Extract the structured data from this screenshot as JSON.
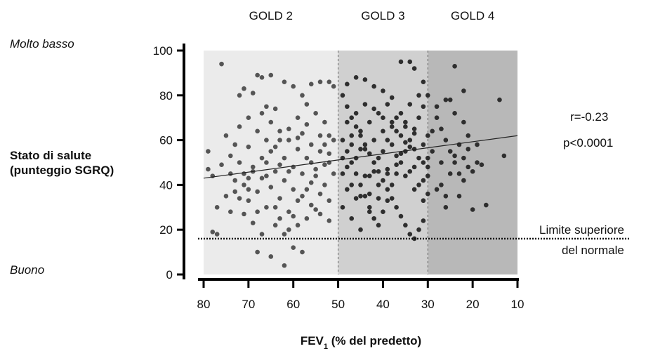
{
  "chart_data": {
    "type": "scatter",
    "title": "",
    "xlabel": "FEV",
    "xlabel_sub": "1",
    "xlabel_rest": " (% del predetto)",
    "ylabel_line1": "Stato di salute",
    "ylabel_line2": "(punteggio SGRQ)",
    "y_top_label": "Molto basso",
    "y_bottom_label": "Buono",
    "xlim": [
      80,
      10
    ],
    "ylim": [
      0,
      100
    ],
    "x_reversed": true,
    "x_ticks": [
      "80",
      "70",
      "60",
      "50",
      "40",
      "30",
      "20",
      "10"
    ],
    "y_ticks": [
      "0",
      "20",
      "40",
      "60",
      "80",
      "100"
    ],
    "grid": false,
    "regions": [
      {
        "name": "GOLD 2",
        "x_from": 80,
        "x_to": 50,
        "color": "#ebebeb"
      },
      {
        "name": "GOLD 3",
        "x_from": 50,
        "x_to": 30,
        "color": "#d0d0d0"
      },
      {
        "name": "GOLD 4",
        "x_from": 30,
        "x_to": 10,
        "color": "#b8b8b8"
      }
    ],
    "region_dividers": [
      50,
      30
    ],
    "regression_line": {
      "x": [
        80,
        10
      ],
      "y": [
        43,
        62
      ]
    },
    "reference_line": {
      "y": 16,
      "label_line1": "Limite superiore",
      "label_line2": "del normale"
    },
    "stats": {
      "r": "r=-0.23",
      "p": "p<0.0001"
    },
    "point_color": "#555555",
    "point_color_dark": "#2e2e2e",
    "series": [
      {
        "name": "",
        "points": [
          [
            79,
            55
          ],
          [
            78,
            19
          ],
          [
            77,
            18
          ],
          [
            79,
            47
          ],
          [
            76,
            94
          ],
          [
            75,
            62
          ],
          [
            73,
            58
          ],
          [
            74,
            45
          ],
          [
            72,
            80
          ],
          [
            71,
            83
          ],
          [
            69,
            81
          ],
          [
            70,
            57
          ],
          [
            68,
            89
          ],
          [
            67,
            88
          ],
          [
            65,
            89
          ],
          [
            66,
            75
          ],
          [
            64,
            74
          ],
          [
            62,
            86
          ],
          [
            60,
            84
          ],
          [
            58,
            80
          ],
          [
            56,
            85
          ],
          [
            54,
            86
          ],
          [
            52,
            86
          ],
          [
            51,
            84
          ],
          [
            72,
            50
          ],
          [
            70,
            43
          ],
          [
            68,
            37
          ],
          [
            66,
            30
          ],
          [
            64,
            22
          ],
          [
            62,
            18
          ],
          [
            60,
            12
          ],
          [
            58,
            10
          ],
          [
            62,
            4
          ],
          [
            65,
            8
          ],
          [
            68,
            10
          ],
          [
            73,
            42
          ],
          [
            75,
            35
          ],
          [
            77,
            30
          ],
          [
            71,
            27
          ],
          [
            69,
            23
          ],
          [
            67,
            18
          ],
          [
            63,
            25
          ],
          [
            61,
            28
          ],
          [
            59,
            33
          ],
          [
            57,
            38
          ],
          [
            55,
            44
          ],
          [
            53,
            49
          ],
          [
            52,
            54
          ],
          [
            51,
            60
          ],
          [
            54,
            62
          ],
          [
            57,
            67
          ],
          [
            59,
            70
          ],
          [
            61,
            65
          ],
          [
            63,
            60
          ],
          [
            65,
            55
          ],
          [
            67,
            52
          ],
          [
            69,
            48
          ],
          [
            71,
            45
          ],
          [
            73,
            37
          ],
          [
            74,
            28
          ],
          [
            72,
            66
          ],
          [
            70,
            70
          ],
          [
            68,
            64
          ],
          [
            66,
            60
          ],
          [
            64,
            57
          ],
          [
            62,
            52
          ],
          [
            60,
            48
          ],
          [
            58,
            45
          ],
          [
            56,
            41
          ],
          [
            54,
            36
          ],
          [
            52,
            33
          ],
          [
            55,
            29
          ],
          [
            57,
            25
          ],
          [
            59,
            22
          ],
          [
            61,
            20
          ],
          [
            63,
            34
          ],
          [
            65,
            39
          ],
          [
            67,
            43
          ],
          [
            69,
            46
          ],
          [
            71,
            40
          ],
          [
            70,
            33
          ],
          [
            68,
            28
          ],
          [
            66,
            50
          ],
          [
            64,
            46
          ],
          [
            62,
            42
          ],
          [
            60,
            38
          ],
          [
            58,
            35
          ],
          [
            56,
            31
          ],
          [
            54,
            27
          ],
          [
            52,
            24
          ],
          [
            53,
            40
          ],
          [
            55,
            47
          ],
          [
            57,
            52
          ],
          [
            59,
            56
          ],
          [
            61,
            60
          ],
          [
            63,
            64
          ],
          [
            65,
            68
          ],
          [
            67,
            72
          ],
          [
            56,
            58
          ],
          [
            54,
            55
          ],
          [
            52,
            50
          ],
          [
            51,
            45
          ],
          [
            53,
            68
          ],
          [
            55,
            72
          ],
          [
            57,
            76
          ],
          [
            59,
            61
          ],
          [
            61,
            46
          ],
          [
            63,
            49
          ],
          [
            66,
            44
          ],
          [
            70,
            38
          ],
          [
            74,
            53
          ],
          [
            76,
            49
          ],
          [
            78,
            44
          ],
          [
            72,
            34
          ],
          [
            64,
            30
          ],
          [
            60,
            26
          ],
          [
            58,
            63
          ],
          [
            56,
            50
          ],
          [
            53,
            58
          ],
          [
            52,
            62
          ],
          [
            49,
            80
          ],
          [
            48,
            75
          ],
          [
            47,
            70
          ],
          [
            46,
            66
          ],
          [
            45,
            62
          ],
          [
            44,
            58
          ],
          [
            43,
            54
          ],
          [
            42,
            50
          ],
          [
            41,
            46
          ],
          [
            40,
            42
          ],
          [
            39,
            38
          ],
          [
            38,
            34
          ],
          [
            37,
            30
          ],
          [
            36,
            26
          ],
          [
            35,
            22
          ],
          [
            34,
            18
          ],
          [
            33,
            16
          ],
          [
            32,
            20
          ],
          [
            31,
            24
          ],
          [
            49,
            60
          ],
          [
            48,
            55
          ],
          [
            47,
            50
          ],
          [
            46,
            45
          ],
          [
            45,
            40
          ],
          [
            44,
            35
          ],
          [
            43,
            30
          ],
          [
            42,
            25
          ],
          [
            41,
            22
          ],
          [
            40,
            28
          ],
          [
            39,
            33
          ],
          [
            38,
            40
          ],
          [
            37,
            45
          ],
          [
            36,
            50
          ],
          [
            35,
            55
          ],
          [
            34,
            60
          ],
          [
            33,
            65
          ],
          [
            32,
            70
          ],
          [
            31,
            75
          ],
          [
            30,
            80
          ],
          [
            48,
            85
          ],
          [
            46,
            88
          ],
          [
            44,
            87
          ],
          [
            42,
            84
          ],
          [
            40,
            82
          ],
          [
            38,
            79
          ],
          [
            36,
            95
          ],
          [
            34,
            95
          ],
          [
            33,
            92
          ],
          [
            31,
            86
          ],
          [
            49,
            45
          ],
          [
            47,
            40
          ],
          [
            45,
            35
          ],
          [
            43,
            28
          ],
          [
            41,
            34
          ],
          [
            39,
            47
          ],
          [
            37,
            53
          ],
          [
            35,
            59
          ],
          [
            33,
            63
          ],
          [
            31,
            58
          ],
          [
            30,
            52
          ],
          [
            48,
            68
          ],
          [
            46,
            72
          ],
          [
            44,
            76
          ],
          [
            42,
            74
          ],
          [
            40,
            70
          ],
          [
            38,
            66
          ],
          [
            36,
            62
          ],
          [
            34,
            57
          ],
          [
            32,
            52
          ],
          [
            30,
            48
          ],
          [
            49,
            30
          ],
          [
            47,
            25
          ],
          [
            45,
            20
          ],
          [
            43,
            36
          ],
          [
            41,
            40
          ],
          [
            39,
            45
          ],
          [
            37,
            49
          ],
          [
            35,
            44
          ],
          [
            33,
            38
          ],
          [
            31,
            33
          ],
          [
            48,
            48
          ],
          [
            46,
            52
          ],
          [
            44,
            56
          ],
          [
            42,
            60
          ],
          [
            40,
            64
          ],
          [
            38,
            68
          ],
          [
            36,
            72
          ],
          [
            34,
            76
          ],
          [
            32,
            80
          ],
          [
            30,
            62
          ],
          [
            49,
            52
          ],
          [
            47,
            58
          ],
          [
            45,
            64
          ],
          [
            43,
            68
          ],
          [
            41,
            72
          ],
          [
            39,
            76
          ],
          [
            37,
            70
          ],
          [
            35,
            66
          ],
          [
            33,
            48
          ],
          [
            31,
            42
          ],
          [
            48,
            38
          ],
          [
            46,
            34
          ],
          [
            44,
            44
          ],
          [
            42,
            46
          ],
          [
            40,
            55
          ],
          [
            38,
            58
          ],
          [
            36,
            54
          ],
          [
            34,
            46
          ],
          [
            32,
            40
          ],
          [
            30,
            36
          ],
          [
            47,
            62
          ],
          [
            45,
            56
          ],
          [
            43,
            44
          ],
          [
            41,
            52
          ],
          [
            39,
            60
          ],
          [
            37,
            64
          ],
          [
            35,
            68
          ],
          [
            33,
            56
          ],
          [
            31,
            50
          ],
          [
            30,
            44
          ],
          [
            28,
            70
          ],
          [
            27,
            65
          ],
          [
            26,
            60
          ],
          [
            25,
            55
          ],
          [
            24,
            50
          ],
          [
            23,
            45
          ],
          [
            22,
            42
          ],
          [
            21,
            48
          ],
          [
            20,
            46
          ],
          [
            19,
            50
          ],
          [
            18,
            49
          ],
          [
            17,
            31
          ],
          [
            20,
            29
          ],
          [
            23,
            35
          ],
          [
            26,
            30
          ],
          [
            27,
            40
          ],
          [
            25,
            78
          ],
          [
            22,
            82
          ],
          [
            24,
            93
          ],
          [
            14,
            78
          ],
          [
            13,
            53
          ],
          [
            28,
            75
          ],
          [
            26,
            78
          ],
          [
            24,
            72
          ],
          [
            22,
            68
          ],
          [
            21,
            62
          ],
          [
            29,
            55
          ],
          [
            27,
            50
          ],
          [
            25,
            45
          ],
          [
            23,
            58
          ],
          [
            21,
            56
          ],
          [
            19,
            58
          ],
          [
            28,
            38
          ],
          [
            26,
            35
          ],
          [
            24,
            53
          ],
          [
            22,
            52
          ],
          [
            29,
            64
          ]
        ]
      }
    ]
  }
}
